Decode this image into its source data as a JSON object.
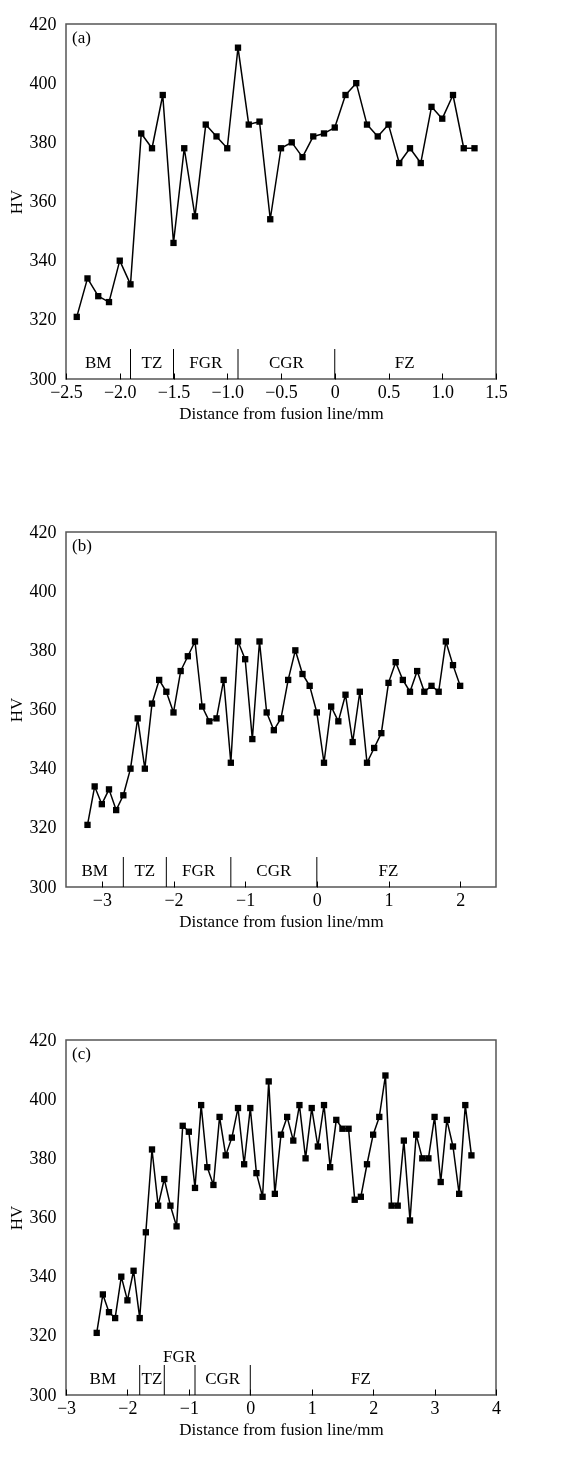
{
  "chart_data": [
    {
      "type": "line",
      "xlabel": "Distance from fusion line/mm",
      "ylabel": "HV",
      "annotations": [
        "(a)",
        "BM",
        "TZ",
        "FGR",
        "CGR",
        "FZ"
      ],
      "x": [
        -2.4,
        -2.3,
        -2.2,
        -2.1,
        -2.0,
        -1.9,
        -1.8,
        -1.7,
        -1.6,
        -1.5,
        -1.4,
        -1.3,
        -1.2,
        -1.1,
        -1.0,
        -0.9,
        -0.8,
        -0.7,
        -0.6,
        -0.5,
        -0.4,
        -0.3,
        -0.2,
        -0.1,
        0,
        0.1,
        0.2,
        0.3,
        0.4,
        0.5,
        0.6,
        0.7,
        0.8,
        0.9,
        1.0,
        1.1,
        1.2,
        1.3
      ],
      "series": [
        {
          "color": "#000000",
          "values": [
            321,
            334,
            328,
            326,
            340,
            332,
            383,
            378,
            396,
            346,
            378,
            355,
            386,
            382,
            378,
            412,
            386,
            387,
            354,
            378,
            380,
            375,
            382,
            383,
            385,
            396,
            400,
            386,
            382,
            386,
            373,
            378,
            373,
            392,
            388,
            396,
            378,
            378
          ]
        }
      ],
      "xlim": [
        -2.5,
        1.5
      ],
      "ylim": [
        300,
        420
      ],
      "xticks": [
        {
          "value": -2.5,
          "label": "−2.5"
        },
        {
          "value": -2,
          "label": "−2.0"
        },
        {
          "value": -1.5,
          "label": "−1.5"
        },
        {
          "value": -1,
          "label": "−1.0"
        },
        {
          "value": -0.5,
          "label": "−0.5"
        },
        0,
        0.5,
        {
          "value": 1,
          "label": "1.0"
        },
        1.5
      ],
      "yticks": [
        300,
        320,
        340,
        360,
        380,
        400,
        420
      ],
      "ref_lines": [
        {
          "axis": "x",
          "value": -1.9
        },
        {
          "axis": "x",
          "value": -1.5
        },
        {
          "axis": "x",
          "value": -0.9
        },
        {
          "axis": "x",
          "value": 0
        }
      ],
      "marker": "square",
      "line_style": "solid"
    },
    {
      "type": "line",
      "xlabel": "Distance from fusion line/mm",
      "ylabel": "HV",
      "annotations": [
        "(b)",
        "BM",
        "TZ",
        "FGR",
        "CGR",
        "FZ"
      ],
      "x": [
        -3.2,
        -3.1,
        -3.0,
        -2.9,
        -2.8,
        -2.7,
        -2.6,
        -2.5,
        -2.4,
        -2.3,
        -2.2,
        -2.1,
        -2.0,
        -1.9,
        -1.8,
        -1.7,
        -1.6,
        -1.5,
        -1.4,
        -1.3,
        -1.2,
        -1.1,
        -1.0,
        -0.9,
        -0.8,
        -0.7,
        -0.6,
        -0.5,
        -0.4,
        -0.3,
        -0.2,
        -0.1,
        0,
        0.1,
        0.2,
        0.3,
        0.4,
        0.5,
        0.6,
        0.7,
        0.8,
        0.9,
        1.0,
        1.1,
        1.2,
        1.3,
        1.4,
        1.5,
        1.6,
        1.7,
        1.8,
        1.9,
        2.0
      ],
      "series": [
        {
          "color": "#000000",
          "values": [
            321,
            334,
            328,
            333,
            326,
            331,
            340,
            357,
            340,
            362,
            370,
            366,
            359,
            373,
            378,
            383,
            361,
            356,
            357,
            370,
            342,
            383,
            377,
            350,
            383,
            359,
            353,
            357,
            370,
            380,
            372,
            368,
            359,
            342,
            361,
            356,
            365,
            349,
            366,
            342,
            347,
            352,
            369,
            376,
            370,
            366,
            373,
            366,
            368,
            366,
            383,
            375,
            368
          ]
        }
      ],
      "xlim": [
        -3.5,
        2.5
      ],
      "ylim": [
        300,
        420
      ],
      "xticks": [
        {
          "value": -3,
          "label": "−3"
        },
        {
          "value": -2,
          "label": "−2"
        },
        {
          "value": -1,
          "label": "−1"
        },
        0,
        1,
        2
      ],
      "yticks": [
        300,
        320,
        340,
        360,
        380,
        400,
        420
      ],
      "ref_lines": [
        {
          "axis": "x",
          "value": -2.7
        },
        {
          "axis": "x",
          "value": -2.1
        },
        {
          "axis": "x",
          "value": -1.2
        },
        {
          "axis": "x",
          "value": 0
        }
      ],
      "marker": "square",
      "line_style": "solid"
    },
    {
      "type": "line",
      "xlabel": "Distance from fusion line/mm",
      "ylabel": "HV",
      "annotations": [
        "(c)",
        "BM",
        "TZ",
        "FGR",
        "CGR",
        "FZ"
      ],
      "x": [
        -2.5,
        -2.4,
        -2.3,
        -2.2,
        -2.1,
        -2.0,
        -1.9,
        -1.8,
        -1.7,
        -1.6,
        -1.5,
        -1.4,
        -1.3,
        -1.2,
        -1.1,
        -1.0,
        -0.9,
        -0.8,
        -0.7,
        -0.6,
        -0.5,
        -0.4,
        -0.3,
        -0.2,
        -0.1,
        0,
        0.1,
        0.2,
        0.3,
        0.4,
        0.5,
        0.6,
        0.7,
        0.8,
        0.9,
        1.0,
        1.1,
        1.2,
        1.3,
        1.4,
        1.5,
        1.6,
        1.7,
        1.8,
        1.9,
        2.0,
        2.1,
        2.2,
        2.3,
        2.4,
        2.5,
        2.6,
        2.7,
        2.8,
        2.9,
        3.0,
        3.1,
        3.2,
        3.3,
        3.4,
        3.5,
        3.6
      ],
      "series": [
        {
          "color": "#000000",
          "values": [
            321,
            334,
            328,
            326,
            340,
            332,
            342,
            326,
            355,
            383,
            364,
            373,
            364,
            357,
            391,
            389,
            370,
            398,
            377,
            371,
            394,
            381,
            387,
            397,
            378,
            397,
            375,
            367,
            406,
            368,
            388,
            394,
            386,
            398,
            380,
            397,
            384,
            398,
            377,
            393,
            390,
            390,
            366,
            367,
            378,
            388,
            394,
            408,
            364,
            364,
            386,
            359,
            388,
            380,
            380,
            394,
            372,
            393,
            384,
            368,
            398,
            381
          ]
        }
      ],
      "xlim": [
        -3,
        4
      ],
      "ylim": [
        300,
        420
      ],
      "xticks": [
        {
          "value": -3,
          "label": "−3"
        },
        {
          "value": -2,
          "label": "−2"
        },
        {
          "value": -1,
          "label": "−1"
        },
        0,
        1,
        2,
        3,
        4
      ],
      "yticks": [
        300,
        320,
        340,
        360,
        380,
        400,
        420
      ],
      "ref_lines": [
        {
          "axis": "x",
          "value": -1.8
        },
        {
          "axis": "x",
          "value": -1.4
        },
        {
          "axis": "x",
          "value": -0.9
        },
        {
          "axis": "x",
          "value": 0
        }
      ],
      "marker": "square",
      "line_style": "solid"
    }
  ]
}
